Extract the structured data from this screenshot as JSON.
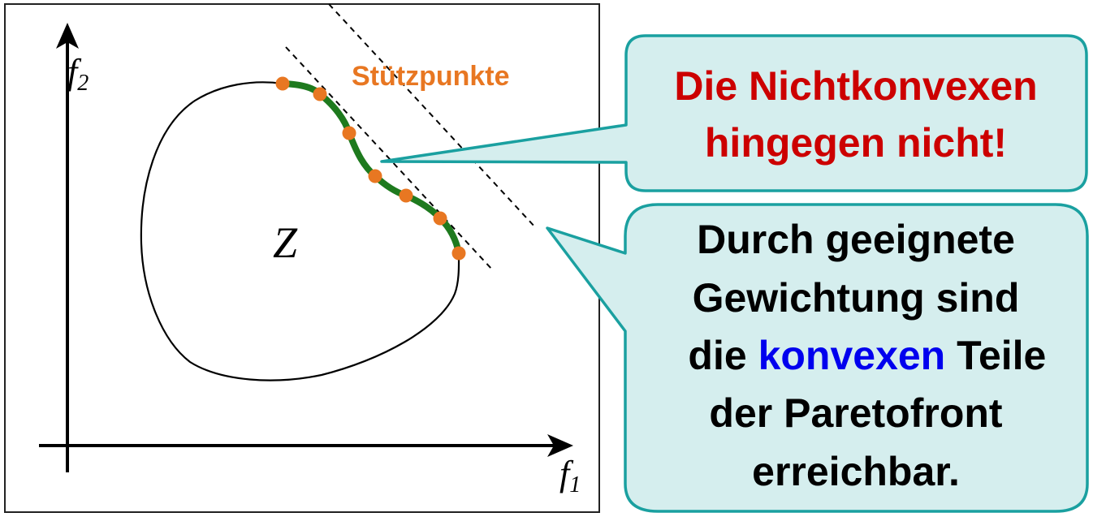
{
  "diagram": {
    "axis_x_label": "f",
    "axis_x_sub": "1",
    "axis_y_label": "f",
    "axis_y_sub": "2",
    "region_label": "Z",
    "points_label": "Stützpunkte"
  },
  "callout_top": {
    "line1": "Die Nichtkonvexen",
    "line2": "hingegen nicht!"
  },
  "callout_bottom": {
    "line1": "Durch geeignete",
    "line2": "Gewichtung sind",
    "line3_pre": "die ",
    "line3_highlight": "konvexen",
    "line3_post": " Teile",
    "line4": "der Paretofront",
    "line5": "erreichbar."
  },
  "colors": {
    "pareto_front": "#1e7a1e",
    "support_points": "#e87722",
    "callout_fill": "#d5eeee",
    "callout_border": "#1aa0a0",
    "red_text": "#cc0000",
    "blue_text": "#0000ee"
  }
}
